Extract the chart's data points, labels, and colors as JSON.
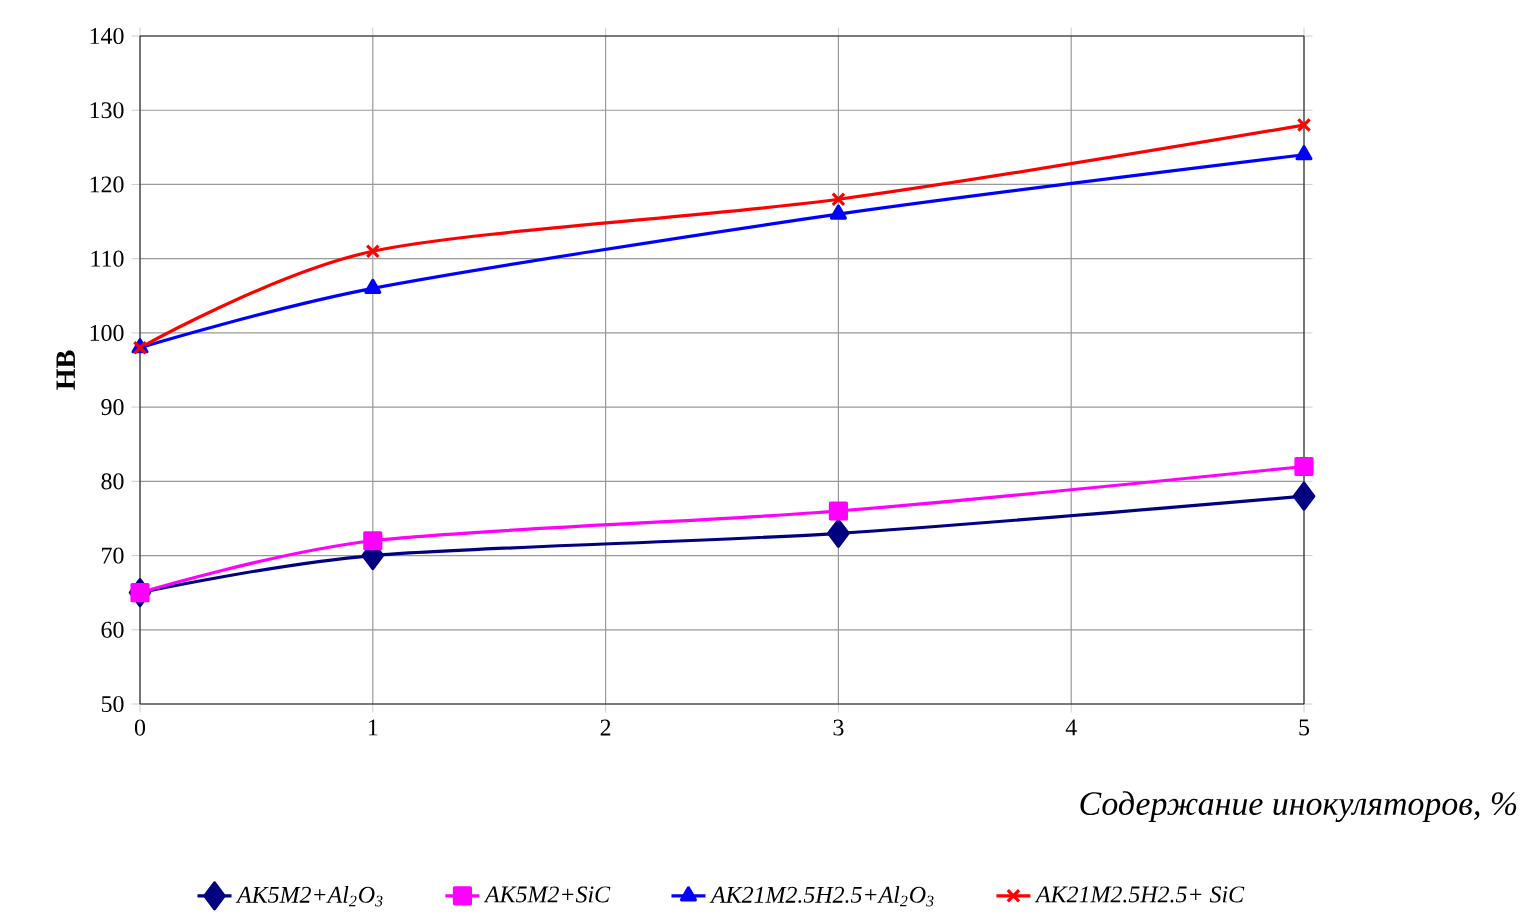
{
  "chart_data": {
    "type": "line",
    "xlabel": "Содержание инокуляторов, %",
    "ylabel": "**HB**",
    "x": [
      0,
      1,
      3,
      5
    ],
    "series": [
      {
        "name": "AK5M2+Al$_{2}$O$_{3}$",
        "color": "#000080",
        "marker": "diamond",
        "values": [
          65,
          70,
          73,
          78
        ]
      },
      {
        "name": "AK5M2+SiC",
        "color": "#ff00ff",
        "marker": "square",
        "values": [
          65,
          72,
          76,
          82
        ]
      },
      {
        "name": "AK21M2.5H2.5+Al$_{2}$O$_{3}$",
        "color": "#0000ff",
        "marker": "triangle",
        "values": [
          98,
          106,
          116,
          124
        ]
      },
      {
        "name": "AK21M2.5H2.5+ SiC",
        "color": "#ff0000",
        "marker": "cross",
        "values": [
          98,
          111,
          118,
          128
        ]
      }
    ],
    "xlim": [
      0,
      5
    ],
    "xticks": [
      0,
      1,
      2,
      3,
      4,
      5
    ],
    "ylim": [
      50,
      140
    ],
    "yticks": [
      50,
      60,
      70,
      80,
      90,
      100,
      110,
      120,
      130,
      140
    ],
    "grid": true,
    "legend": "bottom"
  }
}
